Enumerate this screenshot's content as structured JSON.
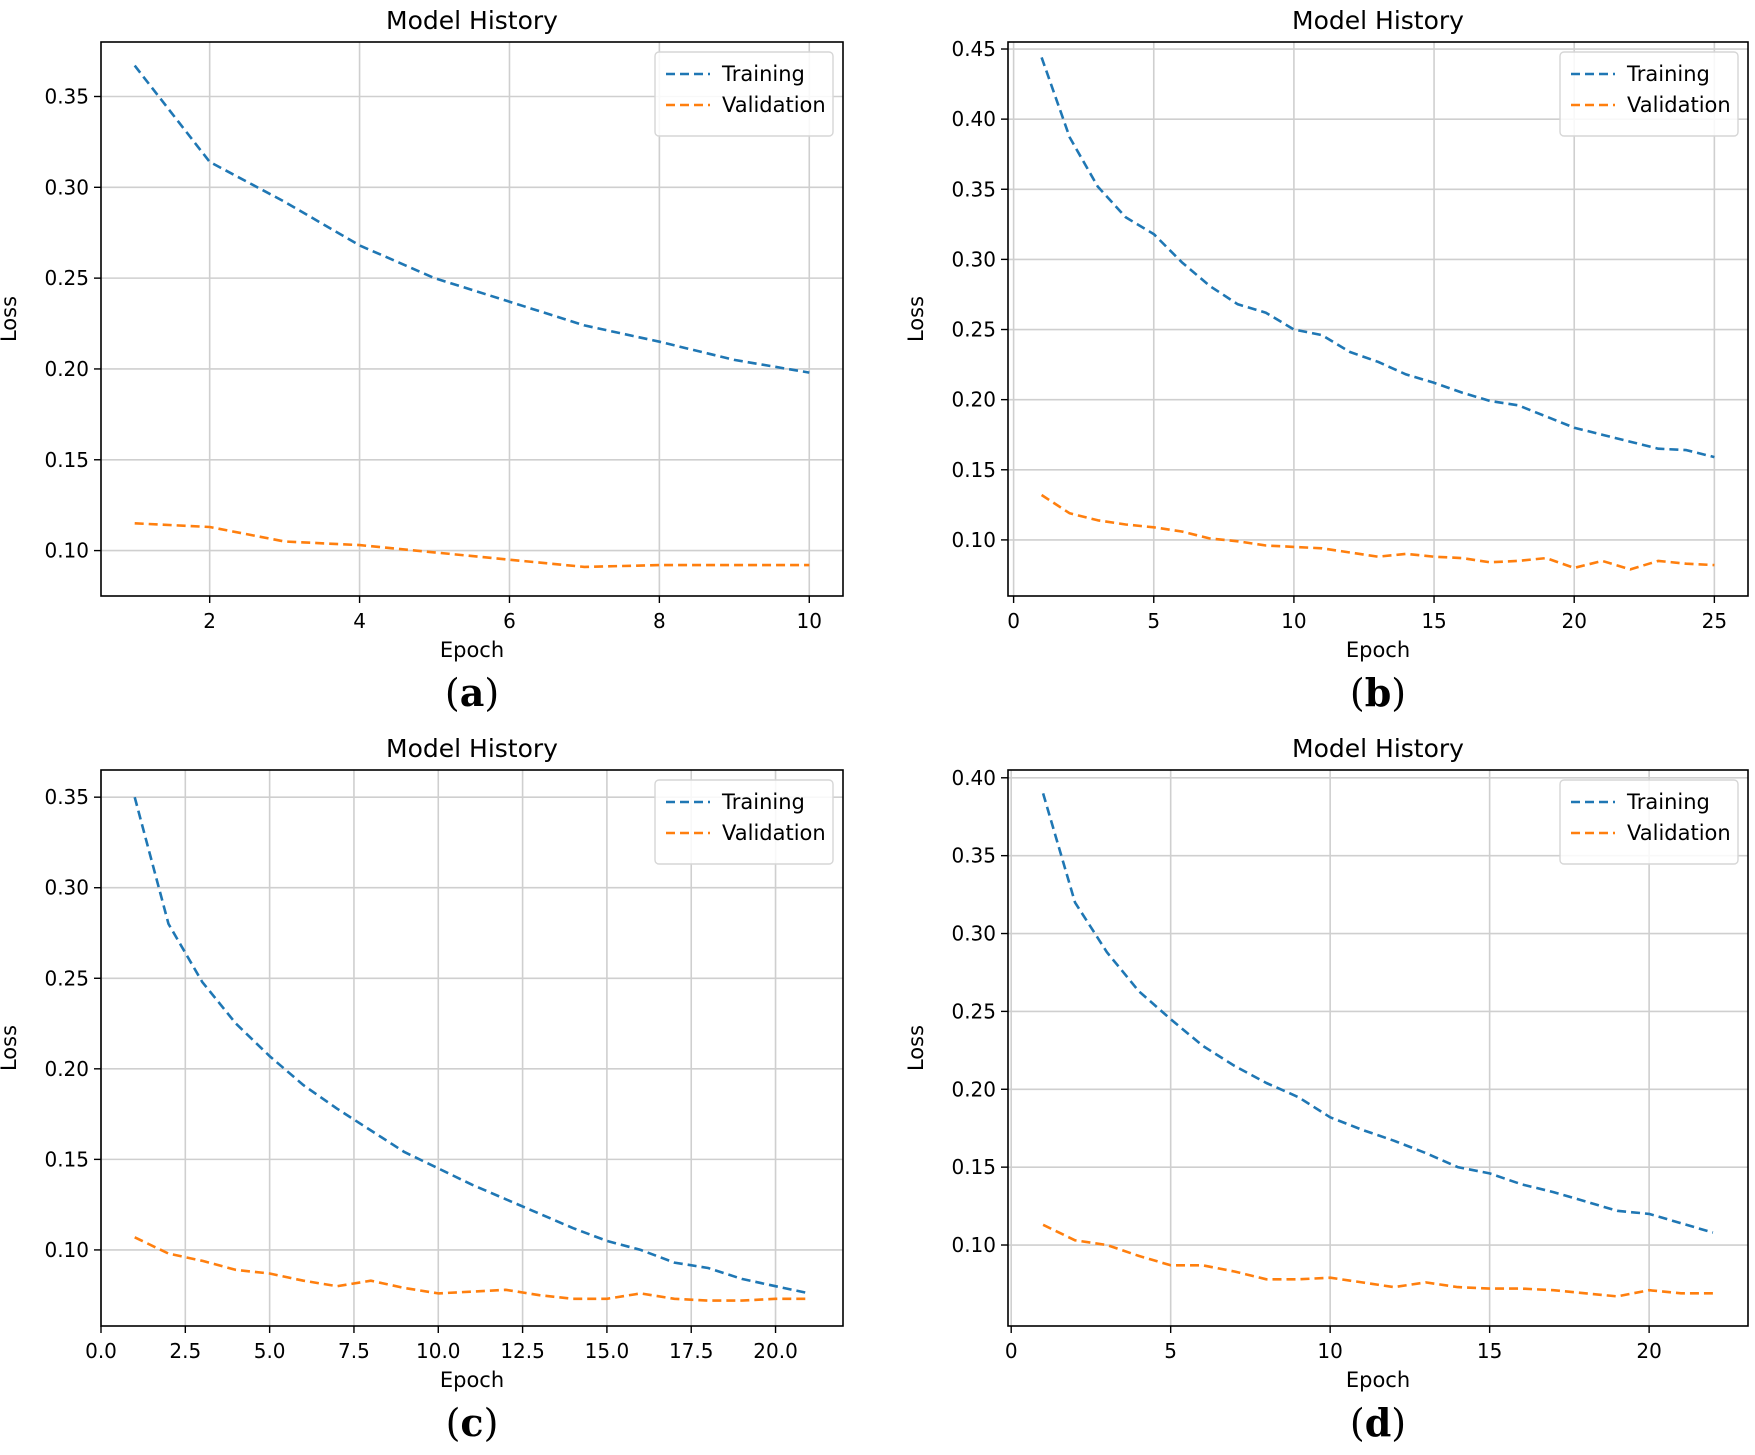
{
  "chart_data": [
    {
      "type": "line",
      "panel_label": "a",
      "title": "Model History",
      "xlabel": "Epoch",
      "ylabel": "Loss",
      "xlim": [
        0.55,
        10.45
      ],
      "ylim": [
        0.075,
        0.38
      ],
      "xticks": [
        2,
        4,
        6,
        8,
        10
      ],
      "xtick_labels": [
        "2",
        "4",
        "6",
        "8",
        "10"
      ],
      "yticks": [
        0.1,
        0.15,
        0.2,
        0.25,
        0.3,
        0.35
      ],
      "ytick_labels": [
        "0.10",
        "0.15",
        "0.20",
        "0.25",
        "0.30",
        "0.35"
      ],
      "grid": true,
      "legend_position": "top-right",
      "x": [
        1,
        2,
        3,
        4,
        5,
        6,
        7,
        8,
        9,
        10
      ],
      "series": [
        {
          "name": "Training",
          "color": "#1f77b4",
          "style": "dashed",
          "values": [
            0.367,
            0.314,
            0.292,
            0.268,
            0.25,
            0.237,
            0.224,
            0.215,
            0.205,
            0.198
          ]
        },
        {
          "name": "Validation",
          "color": "#ff7f0e",
          "style": "dashed",
          "values": [
            0.115,
            0.113,
            0.105,
            0.103,
            0.099,
            0.095,
            0.091,
            0.092,
            0.092,
            0.092
          ]
        }
      ]
    },
    {
      "type": "line",
      "panel_label": "b",
      "title": "Model History",
      "xlabel": "Epoch",
      "ylabel": "Loss",
      "xlim": [
        -0.2,
        26.2
      ],
      "ylim": [
        0.06,
        0.455
      ],
      "xticks": [
        0,
        5,
        10,
        15,
        20,
        25
      ],
      "xtick_labels": [
        "0",
        "5",
        "10",
        "15",
        "20",
        "25"
      ],
      "yticks": [
        0.1,
        0.15,
        0.2,
        0.25,
        0.3,
        0.35,
        0.4,
        0.45
      ],
      "ytick_labels": [
        "0.10",
        "0.15",
        "0.20",
        "0.25",
        "0.30",
        "0.35",
        "0.40",
        "0.45"
      ],
      "grid": true,
      "legend_position": "top-right",
      "x": [
        1,
        2,
        3,
        4,
        5,
        6,
        7,
        8,
        9,
        10,
        11,
        12,
        13,
        14,
        15,
        16,
        17,
        18,
        19,
        20,
        21,
        22,
        23,
        24,
        25
      ],
      "series": [
        {
          "name": "Training",
          "color": "#1f77b4",
          "style": "dashed",
          "values": [
            0.444,
            0.387,
            0.352,
            0.33,
            0.318,
            0.298,
            0.281,
            0.268,
            0.262,
            0.25,
            0.246,
            0.234,
            0.227,
            0.218,
            0.212,
            0.205,
            0.199,
            0.196,
            0.188,
            0.18,
            0.175,
            0.17,
            0.165,
            0.164,
            0.159
          ]
        },
        {
          "name": "Validation",
          "color": "#ff7f0e",
          "style": "dashed",
          "values": [
            0.132,
            0.119,
            0.114,
            0.111,
            0.109,
            0.106,
            0.101,
            0.099,
            0.096,
            0.095,
            0.094,
            0.091,
            0.088,
            0.09,
            0.088,
            0.087,
            0.084,
            0.085,
            0.087,
            0.08,
            0.085,
            0.079,
            0.085,
            0.083,
            0.082
          ]
        }
      ]
    },
    {
      "type": "line",
      "panel_label": "c",
      "title": "Model History",
      "xlabel": "Epoch",
      "ylabel": "Loss",
      "xlim": [
        0.0,
        22.0
      ],
      "ylim": [
        0.058,
        0.365
      ],
      "xticks": [
        0.0,
        2.5,
        5.0,
        7.5,
        10.0,
        12.5,
        15.0,
        17.5,
        20.0
      ],
      "xtick_labels": [
        "0.0",
        "2.5",
        "5.0",
        "7.5",
        "10.0",
        "12.5",
        "15.0",
        "17.5",
        "20.0"
      ],
      "yticks": [
        0.1,
        0.15,
        0.2,
        0.25,
        0.3,
        0.35
      ],
      "ytick_labels": [
        "0.10",
        "0.15",
        "0.20",
        "0.25",
        "0.30",
        "0.35"
      ],
      "grid": true,
      "legend_position": "top-right",
      "x": [
        1,
        2,
        3,
        4,
        5,
        6,
        7,
        8,
        9,
        10,
        11,
        12,
        13,
        14,
        15,
        16,
        17,
        18,
        19,
        20,
        21
      ],
      "series": [
        {
          "name": "Training",
          "color": "#1f77b4",
          "style": "dashed",
          "values": [
            0.35,
            0.28,
            0.248,
            0.225,
            0.207,
            0.191,
            0.178,
            0.166,
            0.154,
            0.145,
            0.136,
            0.128,
            0.12,
            0.112,
            0.105,
            0.1,
            0.093,
            0.09,
            0.084,
            0.08,
            0.076
          ]
        },
        {
          "name": "Validation",
          "color": "#ff7f0e",
          "style": "dashed",
          "values": [
            0.107,
            0.098,
            0.094,
            0.089,
            0.087,
            0.083,
            0.08,
            0.083,
            0.079,
            0.076,
            0.077,
            0.078,
            0.075,
            0.073,
            0.073,
            0.076,
            0.073,
            0.072,
            0.072,
            0.073,
            0.073
          ]
        }
      ]
    },
    {
      "type": "line",
      "panel_label": "d",
      "title": "Model History",
      "xlabel": "Epoch",
      "ylabel": "Loss",
      "xlim": [
        -0.1,
        23.1
      ],
      "ylim": [
        0.048,
        0.405
      ],
      "xticks": [
        0,
        5,
        10,
        15,
        20
      ],
      "xtick_labels": [
        "0",
        "5",
        "10",
        "15",
        "20"
      ],
      "yticks": [
        0.1,
        0.15,
        0.2,
        0.25,
        0.3,
        0.35,
        0.4
      ],
      "ytick_labels": [
        "0.10",
        "0.15",
        "0.20",
        "0.25",
        "0.30",
        "0.35",
        "0.40"
      ],
      "grid": true,
      "legend_position": "top-right",
      "x": [
        1,
        2,
        3,
        4,
        5,
        6,
        7,
        8,
        9,
        10,
        11,
        12,
        13,
        14,
        15,
        16,
        17,
        18,
        19,
        20,
        21,
        22
      ],
      "series": [
        {
          "name": "Training",
          "color": "#1f77b4",
          "style": "dashed",
          "values": [
            0.39,
            0.32,
            0.288,
            0.263,
            0.245,
            0.228,
            0.215,
            0.204,
            0.195,
            0.182,
            0.174,
            0.167,
            0.159,
            0.15,
            0.146,
            0.139,
            0.134,
            0.128,
            0.122,
            0.12,
            0.114,
            0.108
          ]
        },
        {
          "name": "Validation",
          "color": "#ff7f0e",
          "style": "dashed",
          "values": [
            0.113,
            0.103,
            0.1,
            0.093,
            0.087,
            0.087,
            0.083,
            0.078,
            0.078,
            0.079,
            0.076,
            0.073,
            0.076,
            0.073,
            0.072,
            0.072,
            0.071,
            0.069,
            0.067,
            0.071,
            0.069,
            0.069
          ]
        }
      ]
    }
  ]
}
